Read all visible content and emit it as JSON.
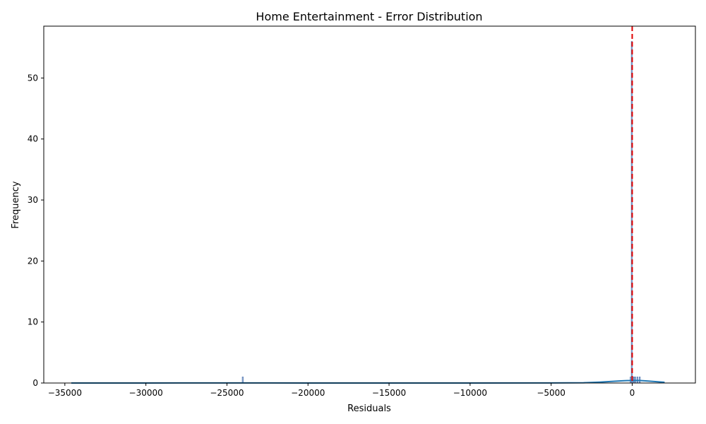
{
  "chart_data": {
    "type": "histogram",
    "title": "Home Entertainment - Error Distribution",
    "xlabel": "Residuals",
    "ylabel": "Frequency",
    "xlim": [
      -36300,
      3900
    ],
    "ylim": [
      0,
      58.5
    ],
    "xticks": [
      -35000,
      -30000,
      -25000,
      -20000,
      -15000,
      -10000,
      -5000,
      0
    ],
    "xtick_labels": [
      "−35000",
      "−30000",
      "−25000",
      "−20000",
      "−15000",
      "−10000",
      "−5000",
      "0"
    ],
    "yticks": [
      0,
      10,
      20,
      30,
      40,
      50
    ],
    "ytick_labels": [
      "0",
      "10",
      "20",
      "30",
      "40",
      "50"
    ],
    "bins": [
      {
        "x0": -24060,
        "x1": -23990,
        "count": 1
      },
      {
        "x0": -130,
        "x1": -60,
        "count": 1
      },
      {
        "x0": -60,
        "x1": 10,
        "count": 56
      },
      {
        "x0": 10,
        "x1": 80,
        "count": 1
      },
      {
        "x0": 80,
        "x1": 150,
        "count": 1
      },
      {
        "x0": 150,
        "x1": 220,
        "count": 1
      },
      {
        "x0": 290,
        "x1": 360,
        "count": 1
      },
      {
        "x0": 430,
        "x1": 500,
        "count": 1
      }
    ],
    "kde": {
      "x": [
        -34600,
        -30000,
        -25000,
        -20000,
        -15000,
        -10000,
        -5000,
        -3000,
        -2000,
        -1000,
        -500,
        0,
        500,
        1000,
        1500,
        2000
      ],
      "y": [
        0,
        0,
        0.02,
        0,
        0,
        0,
        0.01,
        0.05,
        0.15,
        0.3,
        0.38,
        0.42,
        0.4,
        0.32,
        0.22,
        0.12
      ]
    },
    "reference_line": {
      "x": 0,
      "style": "dashed"
    },
    "grid": false,
    "colors": {
      "bars": "#4c72b0",
      "kde": "#1f77b4",
      "reference_line": "#e00000"
    }
  }
}
